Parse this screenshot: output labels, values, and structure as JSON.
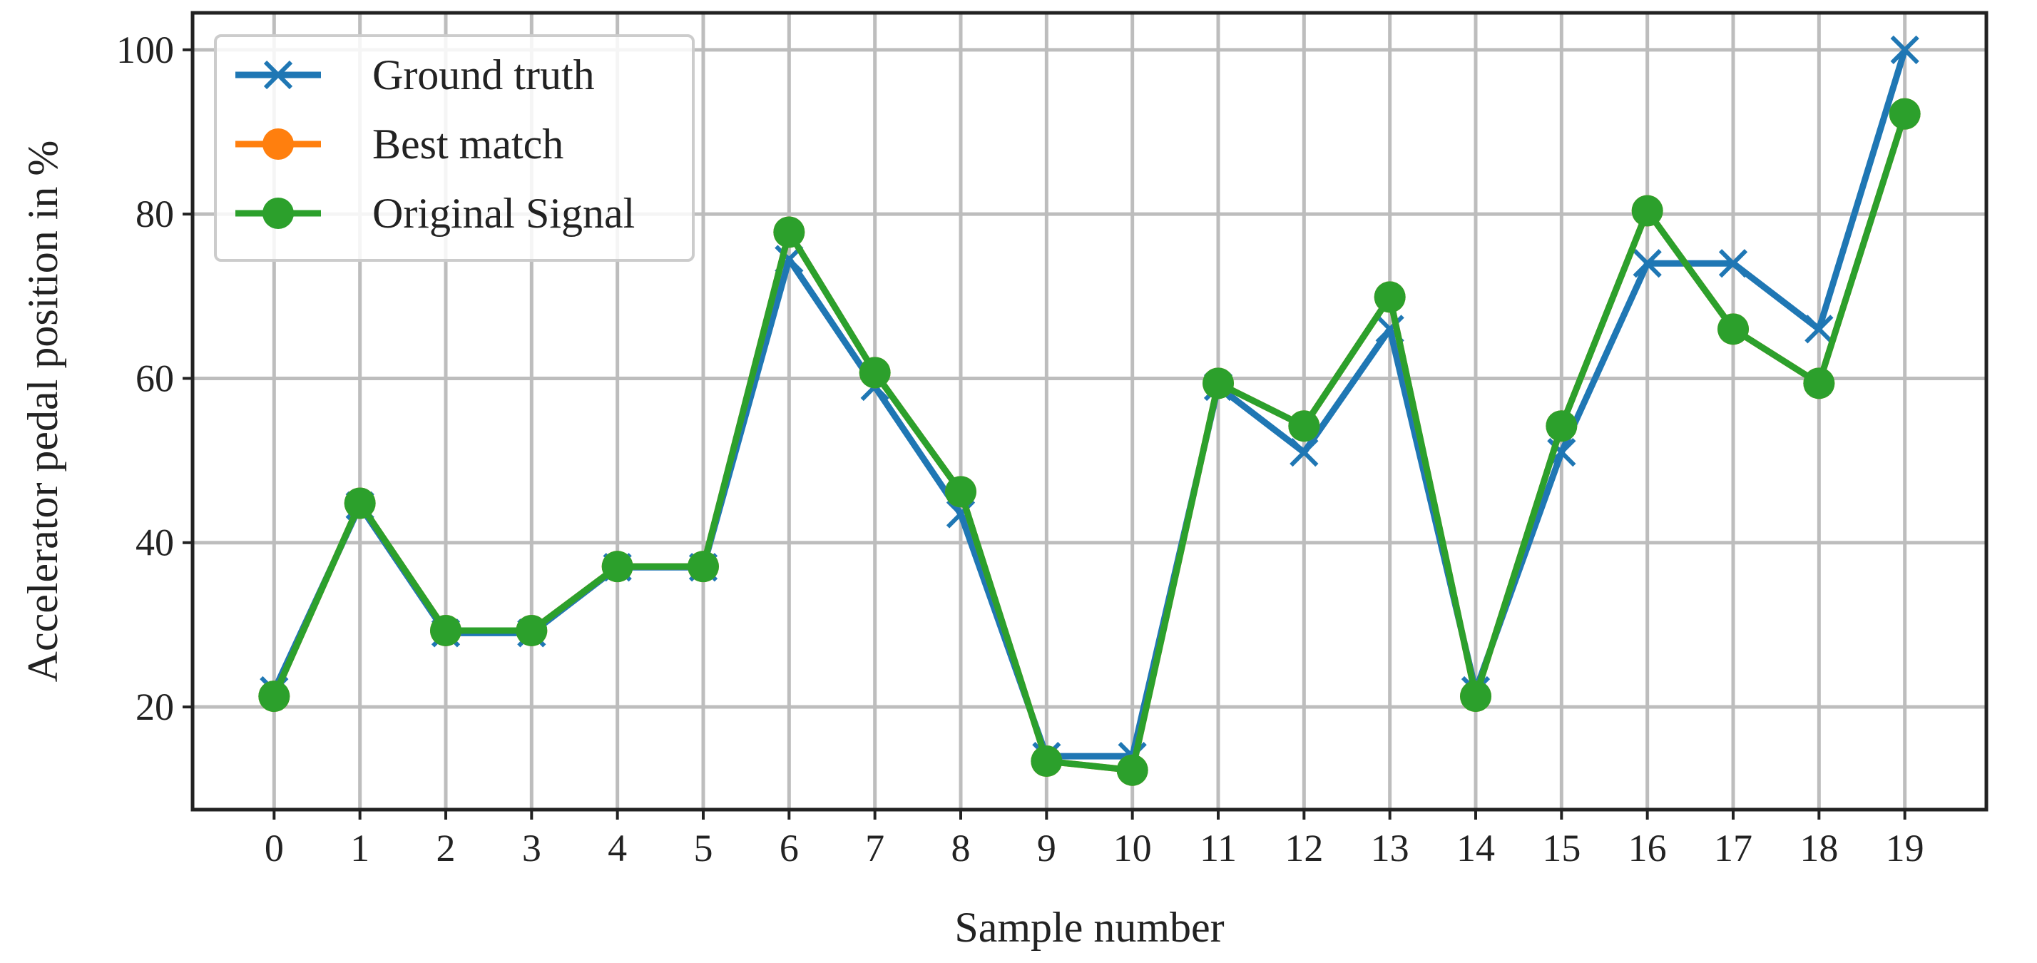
{
  "chart_data": {
    "type": "line",
    "title": "",
    "xlabel": "Sample number",
    "ylabel": "Accelerator pedal position in %",
    "x": [
      0,
      1,
      2,
      3,
      4,
      5,
      6,
      7,
      8,
      9,
      10,
      11,
      12,
      13,
      14,
      15,
      16,
      17,
      18,
      19
    ],
    "xticks": [
      "0",
      "1",
      "2",
      "3",
      "4",
      "5",
      "6",
      "7",
      "8",
      "9",
      "10",
      "11",
      "12",
      "13",
      "14",
      "15",
      "16",
      "17",
      "18",
      "19"
    ],
    "yticks": [
      "20",
      "40",
      "60",
      "80",
      "100"
    ],
    "xlim": [
      -0.95,
      19.95
    ],
    "ylim": [
      7.5,
      104.5
    ],
    "grid": true,
    "legend_position": "top-left",
    "series": [
      {
        "name": "Ground truth",
        "color": "#1f77b4",
        "marker": "x",
        "values": [
          22,
          44.5,
          29,
          29,
          37,
          37,
          74.5,
          59,
          43.5,
          14,
          14,
          59,
          51,
          66,
          22,
          51,
          74,
          74,
          66,
          100
        ]
      },
      {
        "name": "Best match",
        "color": "#ff7f0e",
        "marker": "circle",
        "values": [
          21.3,
          44.8,
          29.3,
          29.3,
          37.1,
          37.1,
          77.8,
          60.7,
          46.2,
          13.4,
          12.3,
          59.4,
          54.2,
          69.9,
          21.3,
          54.2,
          80.4,
          66.0,
          59.4,
          92.2
        ]
      },
      {
        "name": "Original Signal",
        "color": "#2ca02c",
        "marker": "circle",
        "values": [
          21.3,
          44.8,
          29.3,
          29.3,
          37.1,
          37.1,
          77.8,
          60.7,
          46.2,
          13.4,
          12.3,
          59.4,
          54.2,
          69.9,
          21.3,
          54.2,
          80.4,
          66.0,
          59.4,
          92.2
        ]
      }
    ]
  }
}
